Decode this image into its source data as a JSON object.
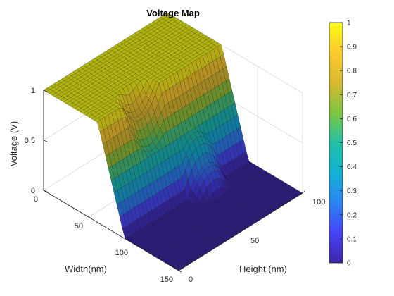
{
  "chart_data": {
    "type": "surface",
    "title": "Voltage Map",
    "xlabel": "Width(nm)",
    "ylabel": "Height (nm)",
    "zlabel": "Voltage (V)",
    "xlim": [
      0,
      150
    ],
    "ylim": [
      0,
      100
    ],
    "zlim": [
      0,
      1
    ],
    "x_ticks": [
      "0",
      "50",
      "100",
      "150"
    ],
    "y_ticks": [
      "0",
      "50",
      "100"
    ],
    "z_ticks": [
      "0",
      "0.5",
      "1"
    ],
    "colormap": "parula",
    "colorbar_range": [
      0,
      1
    ],
    "colorbar_ticks": [
      "0",
      "0.1",
      "0.2",
      "0.3",
      "0.4",
      "0.5",
      "0.6",
      "0.7",
      "0.8",
      "0.9",
      "1"
    ],
    "colors": [
      "#3e26a8",
      "#4743f8",
      "#2c84f3",
      "#12b2d3",
      "#23c0a6",
      "#7dc640",
      "#d8ba31",
      "#fcca2e",
      "#f9fb15"
    ],
    "grid": true,
    "surface_description": {
      "plateau_high_voltage": 1,
      "plateau_low_voltage": 0,
      "high_region_width_nm": [
        0,
        60
      ],
      "low_region_width_nm": [
        90,
        150
      ],
      "transition_width_nm": [
        60,
        90
      ],
      "notch_center_height_nm": [
        35,
        65
      ],
      "notch_radius_nm": 15
    }
  }
}
